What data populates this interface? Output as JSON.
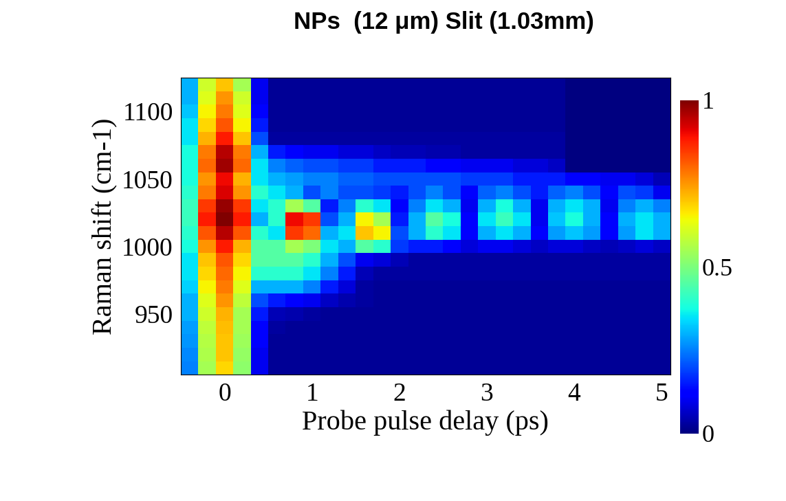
{
  "chart_data": {
    "type": "heatmap",
    "title": "NPs  (12 μm) Slit (1.03mm)",
    "x_label": "Probe pulse delay (ps)",
    "y_label": "Raman shift (cm-1)",
    "x": [
      -0.4,
      -0.2,
      0,
      0.2,
      0.4,
      0.6,
      0.8,
      1.0,
      1.2,
      1.4,
      1.6,
      1.8,
      2.0,
      2.2,
      2.4,
      2.6,
      2.8,
      3.0,
      3.2,
      3.4,
      3.6,
      3.8,
      4.0,
      4.2,
      4.4,
      4.6,
      4.8,
      5.0
    ],
    "y": [
      910,
      920,
      930,
      940,
      950,
      960,
      970,
      980,
      990,
      1000,
      1010,
      1020,
      1030,
      1040,
      1050,
      1060,
      1070,
      1080,
      1090,
      1100,
      1110,
      1120
    ],
    "cells": [
      [
        0.25,
        0.55,
        0.68,
        0.52,
        0.1,
        0.02,
        0.02,
        0.02,
        0.02,
        0.02,
        0.02,
        0.02,
        0.02,
        0.02,
        0.02,
        0.02,
        0.02,
        0.02,
        0.02,
        0.02,
        0.02,
        0.02,
        0.02,
        0.02,
        0.02,
        0.02,
        0.02,
        0.02
      ],
      [
        0.26,
        0.56,
        0.7,
        0.53,
        0.1,
        0.02,
        0.02,
        0.02,
        0.02,
        0.02,
        0.02,
        0.02,
        0.02,
        0.02,
        0.02,
        0.02,
        0.02,
        0.02,
        0.02,
        0.02,
        0.02,
        0.02,
        0.02,
        0.02,
        0.02,
        0.02,
        0.02,
        0.02
      ],
      [
        0.27,
        0.57,
        0.7,
        0.54,
        0.11,
        0.02,
        0.02,
        0.02,
        0.02,
        0.02,
        0.02,
        0.02,
        0.02,
        0.02,
        0.02,
        0.02,
        0.02,
        0.02,
        0.02,
        0.02,
        0.02,
        0.02,
        0.02,
        0.02,
        0.02,
        0.02,
        0.02,
        0.02
      ],
      [
        0.28,
        0.58,
        0.71,
        0.55,
        0.12,
        0.03,
        0.02,
        0.02,
        0.02,
        0.02,
        0.02,
        0.02,
        0.02,
        0.02,
        0.02,
        0.02,
        0.02,
        0.02,
        0.02,
        0.02,
        0.02,
        0.02,
        0.02,
        0.02,
        0.02,
        0.02,
        0.02,
        0.02
      ],
      [
        0.3,
        0.6,
        0.72,
        0.55,
        0.15,
        0.05,
        0.04,
        0.03,
        0.02,
        0.02,
        0.02,
        0.02,
        0.02,
        0.02,
        0.02,
        0.02,
        0.02,
        0.02,
        0.02,
        0.02,
        0.02,
        0.02,
        0.02,
        0.02,
        0.02,
        0.02,
        0.02,
        0.02
      ],
      [
        0.3,
        0.62,
        0.75,
        0.58,
        0.2,
        0.15,
        0.12,
        0.1,
        0.06,
        0.04,
        0.03,
        0.02,
        0.02,
        0.02,
        0.02,
        0.02,
        0.02,
        0.02,
        0.02,
        0.02,
        0.02,
        0.02,
        0.02,
        0.02,
        0.02,
        0.02,
        0.02,
        0.02
      ],
      [
        0.33,
        0.65,
        0.78,
        0.62,
        0.3,
        0.3,
        0.3,
        0.25,
        0.15,
        0.08,
        0.03,
        0.02,
        0.02,
        0.02,
        0.02,
        0.02,
        0.02,
        0.02,
        0.02,
        0.02,
        0.02,
        0.02,
        0.02,
        0.02,
        0.02,
        0.02,
        0.02,
        0.02
      ],
      [
        0.35,
        0.68,
        0.8,
        0.65,
        0.4,
        0.4,
        0.4,
        0.35,
        0.25,
        0.15,
        0.05,
        0.03,
        0.03,
        0.03,
        0.03,
        0.03,
        0.03,
        0.03,
        0.03,
        0.03,
        0.03,
        0.03,
        0.03,
        0.03,
        0.03,
        0.03,
        0.03,
        0.03
      ],
      [
        0.35,
        0.7,
        0.82,
        0.68,
        0.45,
        0.45,
        0.45,
        0.4,
        0.3,
        0.2,
        0.1,
        0.08,
        0.05,
        0.03,
        0.03,
        0.03,
        0.03,
        0.03,
        0.03,
        0.03,
        0.03,
        0.03,
        0.03,
        0.03,
        0.03,
        0.03,
        0.03,
        0.03
      ],
      [
        0.38,
        0.75,
        0.88,
        0.72,
        0.45,
        0.45,
        0.55,
        0.5,
        0.35,
        0.3,
        0.45,
        0.4,
        0.18,
        0.15,
        0.15,
        0.12,
        0.08,
        0.1,
        0.1,
        0.08,
        0.06,
        0.08,
        0.08,
        0.06,
        0.05,
        0.06,
        0.08,
        0.06
      ],
      [
        0.4,
        0.82,
        0.95,
        0.82,
        0.4,
        0.35,
        0.85,
        0.8,
        0.3,
        0.35,
        0.7,
        0.65,
        0.2,
        0.3,
        0.4,
        0.35,
        0.12,
        0.3,
        0.35,
        0.3,
        0.12,
        0.28,
        0.32,
        0.28,
        0.12,
        0.28,
        0.35,
        0.3
      ],
      [
        0.42,
        0.88,
        1.0,
        0.88,
        0.3,
        0.4,
        0.9,
        0.85,
        0.2,
        0.3,
        0.65,
        0.55,
        0.15,
        0.3,
        0.45,
        0.38,
        0.12,
        0.35,
        0.42,
        0.35,
        0.1,
        0.32,
        0.38,
        0.3,
        0.12,
        0.3,
        0.35,
        0.3
      ],
      [
        0.42,
        0.85,
        0.98,
        0.85,
        0.35,
        0.4,
        0.55,
        0.45,
        0.15,
        0.25,
        0.4,
        0.35,
        0.12,
        0.25,
        0.35,
        0.3,
        0.1,
        0.3,
        0.38,
        0.3,
        0.1,
        0.3,
        0.35,
        0.3,
        0.1,
        0.25,
        0.3,
        0.25
      ],
      [
        0.4,
        0.78,
        0.92,
        0.75,
        0.4,
        0.35,
        0.3,
        0.2,
        0.25,
        0.2,
        0.2,
        0.18,
        0.15,
        0.2,
        0.25,
        0.2,
        0.12,
        0.22,
        0.25,
        0.2,
        0.15,
        0.22,
        0.25,
        0.2,
        0.12,
        0.2,
        0.18,
        0.1
      ],
      [
        0.38,
        0.75,
        0.9,
        0.72,
        0.35,
        0.3,
        0.28,
        0.25,
        0.25,
        0.22,
        0.22,
        0.2,
        0.2,
        0.2,
        0.2,
        0.2,
        0.18,
        0.18,
        0.18,
        0.15,
        0.15,
        0.15,
        0.12,
        0.12,
        0.1,
        0.1,
        0.08,
        0.05
      ],
      [
        0.38,
        0.8,
        0.97,
        0.8,
        0.35,
        0.25,
        0.22,
        0.2,
        0.2,
        0.18,
        0.18,
        0.15,
        0.15,
        0.15,
        0.12,
        0.12,
        0.1,
        0.1,
        0.1,
        0.08,
        0.08,
        0.06,
        0,
        0,
        0,
        0,
        0,
        0
      ],
      [
        0.38,
        0.78,
        0.95,
        0.78,
        0.3,
        0.15,
        0.12,
        0.1,
        0.1,
        0.08,
        0.08,
        0.06,
        0.05,
        0.05,
        0.04,
        0.04,
        0.03,
        0.03,
        0.03,
        0.03,
        0.03,
        0.03,
        0,
        0,
        0,
        0,
        0,
        0
      ],
      [
        0.35,
        0.72,
        0.88,
        0.7,
        0.2,
        0.03,
        0.03,
        0.03,
        0.03,
        0.03,
        0.03,
        0.03,
        0.03,
        0.03,
        0.03,
        0.03,
        0.03,
        0.03,
        0.03,
        0.03,
        0.03,
        0.03,
        0,
        0,
        0,
        0,
        0,
        0
      ],
      [
        0.35,
        0.68,
        0.82,
        0.65,
        0.15,
        0.02,
        0.02,
        0.02,
        0.02,
        0.02,
        0.02,
        0.02,
        0.02,
        0.02,
        0.02,
        0.02,
        0.02,
        0.02,
        0.02,
        0.02,
        0.02,
        0.02,
        0,
        0,
        0,
        0,
        0,
        0
      ],
      [
        0.32,
        0.65,
        0.78,
        0.62,
        0.12,
        0.02,
        0.02,
        0.02,
        0.02,
        0.02,
        0.02,
        0.02,
        0.02,
        0.02,
        0.02,
        0.02,
        0.02,
        0.02,
        0.02,
        0.02,
        0.02,
        0.02,
        0,
        0,
        0,
        0,
        0,
        0
      ],
      [
        0.3,
        0.62,
        0.75,
        0.6,
        0.1,
        0.02,
        0.02,
        0.02,
        0.02,
        0.02,
        0.02,
        0.02,
        0.02,
        0.02,
        0.02,
        0.02,
        0.02,
        0.02,
        0.02,
        0.02,
        0.02,
        0.02,
        0,
        0,
        0,
        0,
        0,
        0
      ],
      [
        0.3,
        0.6,
        0.7,
        0.55,
        0.1,
        0.02,
        0.02,
        0.02,
        0.02,
        0.02,
        0.02,
        0.02,
        0.02,
        0.02,
        0.02,
        0.02,
        0.02,
        0.02,
        0.02,
        0.02,
        0.02,
        0.02,
        0,
        0,
        0,
        0,
        0,
        0
      ]
    ],
    "xlim": [
      -0.5,
      5.1
    ],
    "ylim": [
      905,
      1125
    ],
    "xticks": [
      0,
      1,
      2,
      3,
      4,
      5
    ],
    "yticks": [
      950,
      1000,
      1050,
      1100
    ],
    "colorbar_range": [
      0,
      1
    ],
    "colorbar_ticks": [
      0,
      0.5,
      1
    ]
  }
}
